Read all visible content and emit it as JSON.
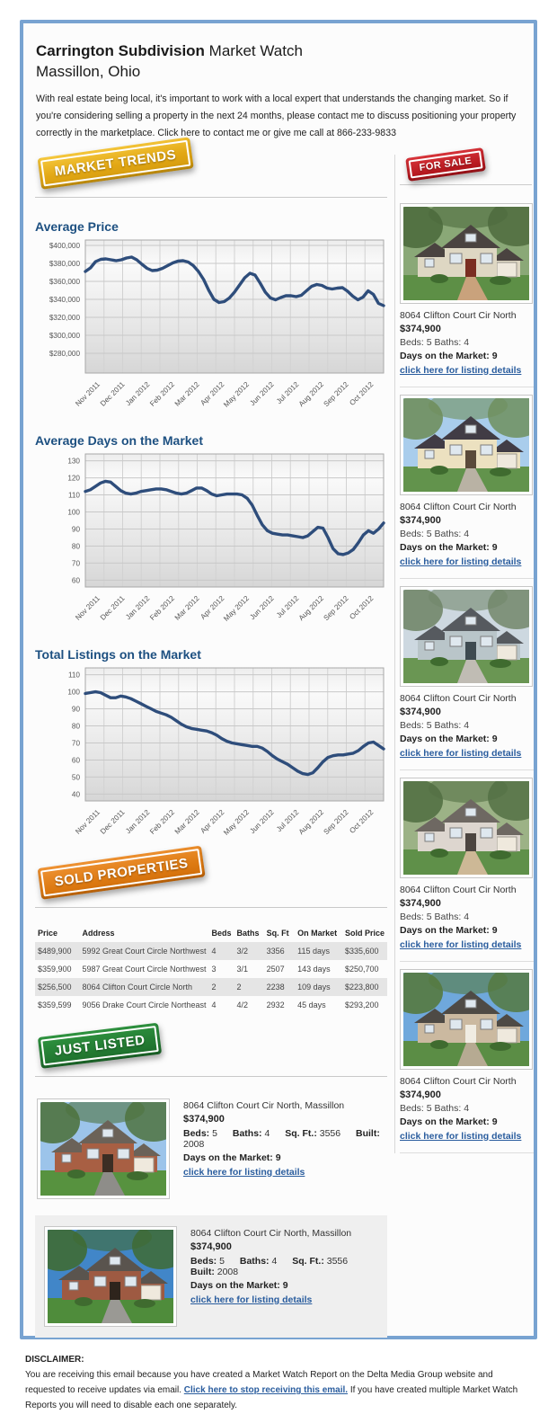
{
  "page": {
    "title_bold": "Carrington Subdivision",
    "title_rest": " Market Watch",
    "subtitle": "Massillon, Ohio",
    "intro": "With real estate being local, it's important to work with a local expert that understands the changing market. So if you're considering selling a property in the next 24 months, please contact me to discuss positioning your property correctly in the marketplace. Click here to contact me or give me call at 866-233-9833"
  },
  "badges": {
    "market_trends": "MARKET TRENDS",
    "for_sale": "FOR SALE",
    "sold_properties": "SOLD PROPERTIES",
    "just_listed": "JUST LISTED"
  },
  "colors": {
    "frame_border": "#78a3d1",
    "heading_blue": "#1d5081",
    "link_blue": "#2a5d9e",
    "chart_line": "#2e4d7b",
    "badge_gold": "#e2a714",
    "badge_red": "#b6181f",
    "badge_orange": "#dd7a12",
    "badge_green": "#1c6b2a"
  },
  "chart_data": [
    {
      "type": "line",
      "title": "Average Price",
      "xlabel": "",
      "ylabel": "",
      "legend": "none",
      "grid": true,
      "categories": [
        "Nov 2011",
        "Dec 2011",
        "Jan 2012",
        "Feb 2012",
        "Mar 2012",
        "Apr 2012",
        "May 2012",
        "Jun 2012",
        "Jul 2012",
        "Aug 2012",
        "Sep 2012",
        "Oct 2012"
      ],
      "ylim": [
        258000,
        406000
      ],
      "yticks": {
        "values": [
          400000,
          380000,
          360000,
          340000,
          320000,
          300000,
          280000
        ],
        "labels": [
          "$400,000",
          "$380,000",
          "$360,000",
          "$340,000",
          "$320,000",
          "$300,000",
          "$280,000"
        ]
      },
      "values": [
        371000,
        375000,
        382000,
        384500,
        385000,
        384000,
        383000,
        384000,
        386000,
        387000,
        384000,
        379000,
        374500,
        372000,
        372500,
        374500,
        377500,
        380500,
        382500,
        383000,
        381500,
        377500,
        371000,
        362000,
        350000,
        340000,
        336500,
        337500,
        341500,
        348000,
        356000,
        364000,
        369000,
        367000,
        358000,
        348000,
        341500,
        339500,
        342000,
        344000,
        344000,
        343000,
        344500,
        349500,
        354500,
        356500,
        355500,
        352500,
        351500,
        352500,
        353000,
        349000,
        343500,
        339500,
        342500,
        349500,
        345500,
        335500,
        333000
      ]
    },
    {
      "type": "line",
      "title": "Average Days on the Market",
      "xlabel": "",
      "ylabel": "",
      "legend": "none",
      "grid": true,
      "categories": [
        "Nov 2011",
        "Dec 2011",
        "Jan 2012",
        "Feb 2012",
        "Mar 2012",
        "Apr 2012",
        "May 2012",
        "Jun 2012",
        "Jul 2012",
        "Aug 2012",
        "Sep 2012",
        "Oct 2012"
      ],
      "ylim": [
        56,
        134
      ],
      "yticks": {
        "values": [
          130,
          120,
          110,
          100,
          90,
          80,
          70,
          60
        ],
        "labels": [
          "130",
          "120",
          "110",
          "100",
          "90",
          "80",
          "70",
          "60"
        ]
      },
      "values": [
        112,
        113,
        115,
        117,
        118,
        117.5,
        115,
        112.5,
        111,
        110.5,
        111,
        112,
        112.5,
        113,
        113.5,
        113.5,
        113,
        112,
        111,
        110.5,
        111,
        112.5,
        114,
        114,
        112.5,
        110.5,
        109.5,
        110,
        110.5,
        110.5,
        110.5,
        110,
        108,
        104,
        98,
        92.5,
        89,
        87.5,
        87,
        86.5,
        86.5,
        86,
        85.5,
        85,
        86,
        88.5,
        91,
        90.5,
        85,
        78.5,
        75.5,
        75,
        76,
        78,
        82,
        86.5,
        89,
        87.5,
        90,
        93.5
      ]
    },
    {
      "type": "line",
      "title": "Total Listings on the Market",
      "xlabel": "",
      "ylabel": "",
      "legend": "none",
      "grid": true,
      "categories": [
        "Nov 2011",
        "Dec 2011",
        "Jan 2012",
        "Feb 2012",
        "Mar 2012",
        "Apr 2012",
        "May 2012",
        "Jun 2012",
        "Jul 2012",
        "Aug 2012",
        "Sep 2012",
        "Oct 2012"
      ],
      "ylim": [
        36,
        114
      ],
      "yticks": {
        "values": [
          110,
          100,
          90,
          80,
          70,
          60,
          50,
          40
        ],
        "labels": [
          "110",
          "100",
          "90",
          "80",
          "70",
          "60",
          "50",
          "40"
        ]
      },
      "values": [
        99,
        99.5,
        100,
        99.5,
        98,
        96.5,
        96.5,
        97.5,
        97,
        96,
        94.5,
        93,
        91.5,
        90,
        88.5,
        87.5,
        86.5,
        85,
        83,
        81,
        79.5,
        78.5,
        78,
        77.5,
        77,
        76,
        74.5,
        72.5,
        71,
        70,
        69.5,
        69,
        68.5,
        68,
        68,
        67,
        65,
        62.5,
        60.5,
        59,
        57.5,
        55.5,
        53.5,
        52,
        51.5,
        52.5,
        55.5,
        59,
        61.5,
        62.5,
        63,
        63,
        63.5,
        64,
        65.5,
        68,
        70,
        70.5,
        68.5,
        66.5
      ]
    }
  ],
  "for_sale_listings": [
    {
      "address": "8064 Clifton Court Cir North",
      "price": "$374,900",
      "beds_baths": "Beds: 5 Baths: 4",
      "days": "Days on the Market: 9",
      "link": "click here for listing details"
    },
    {
      "address": "8064 Clifton Court Cir North",
      "price": "$374,900",
      "beds_baths": "Beds: 5 Baths: 4",
      "days": "Days on the Market: 9",
      "link": "click here for listing details"
    },
    {
      "address": "8064 Clifton Court Cir North",
      "price": "$374,900",
      "beds_baths": "Beds: 5 Baths: 4",
      "days": "Days on the Market: 9",
      "link": "click here for listing details"
    },
    {
      "address": "8064 Clifton Court Cir North",
      "price": "$374,900",
      "beds_baths": "Beds: 5 Baths: 4",
      "days": "Days on the Market: 9",
      "link": "click here for listing details"
    },
    {
      "address": "8064 Clifton Court Cir North",
      "price": "$374,900",
      "beds_baths": "Beds: 5 Baths: 4",
      "days": "Days on the Market: 9",
      "link": "click here for listing details"
    }
  ],
  "sold_table": {
    "headers": [
      "Price",
      "Address",
      "Beds",
      "Baths",
      "Sq. Ft",
      "On Market",
      "Sold Price"
    ],
    "rows": [
      [
        "$489,900",
        "5992 Great Court Circle Northwest",
        "4",
        "3/2",
        "3356",
        "115 days",
        "$335,600"
      ],
      [
        "$359,900",
        "5987 Great Court Circle Northwest",
        "3",
        "3/1",
        "2507",
        "143 days",
        "$250,700"
      ],
      [
        "$256,500",
        "8064 Clifton Court Circle North",
        "2",
        "2",
        "2238",
        "109 days",
        "$223,800"
      ],
      [
        "$359,599",
        "9056 Drake Court Circle Northeast",
        "4",
        "4/2",
        "2932",
        "45 days",
        "$293,200"
      ]
    ]
  },
  "just_listed": [
    {
      "address": "8064 Clifton Court Cir North, Massillon",
      "price": "$374,900",
      "specs": [
        {
          "label": "Beds:",
          "value": "5"
        },
        {
          "label": "Baths:",
          "value": "4"
        },
        {
          "label": "Sq. Ft.:",
          "value": "3556"
        },
        {
          "label": "Built:",
          "value": "2008"
        }
      ],
      "days": "Days on the Market: 9",
      "link": "click here for listing details"
    },
    {
      "address": "8064 Clifton Court Cir North, Massillon",
      "price": "$374,900",
      "specs": [
        {
          "label": "Beds:",
          "value": "5"
        },
        {
          "label": "Baths:",
          "value": "4"
        },
        {
          "label": "Sq. Ft.:",
          "value": "3556"
        },
        {
          "label": "Built:",
          "value": "2008"
        }
      ],
      "days": "Days on the Market: 9",
      "link": "click here for listing details"
    }
  ],
  "disclaimer": {
    "heading": "DISCLAIMER:",
    "before_link": "You are receiving this email because you have created a Market Watch Report on the Delta Media Group website and requested to receive updates via email. ",
    "link": "Click here to stop receiving this email.",
    "after_link": " If you have created multiple Market Watch Reports you will need to disable each one separately."
  }
}
